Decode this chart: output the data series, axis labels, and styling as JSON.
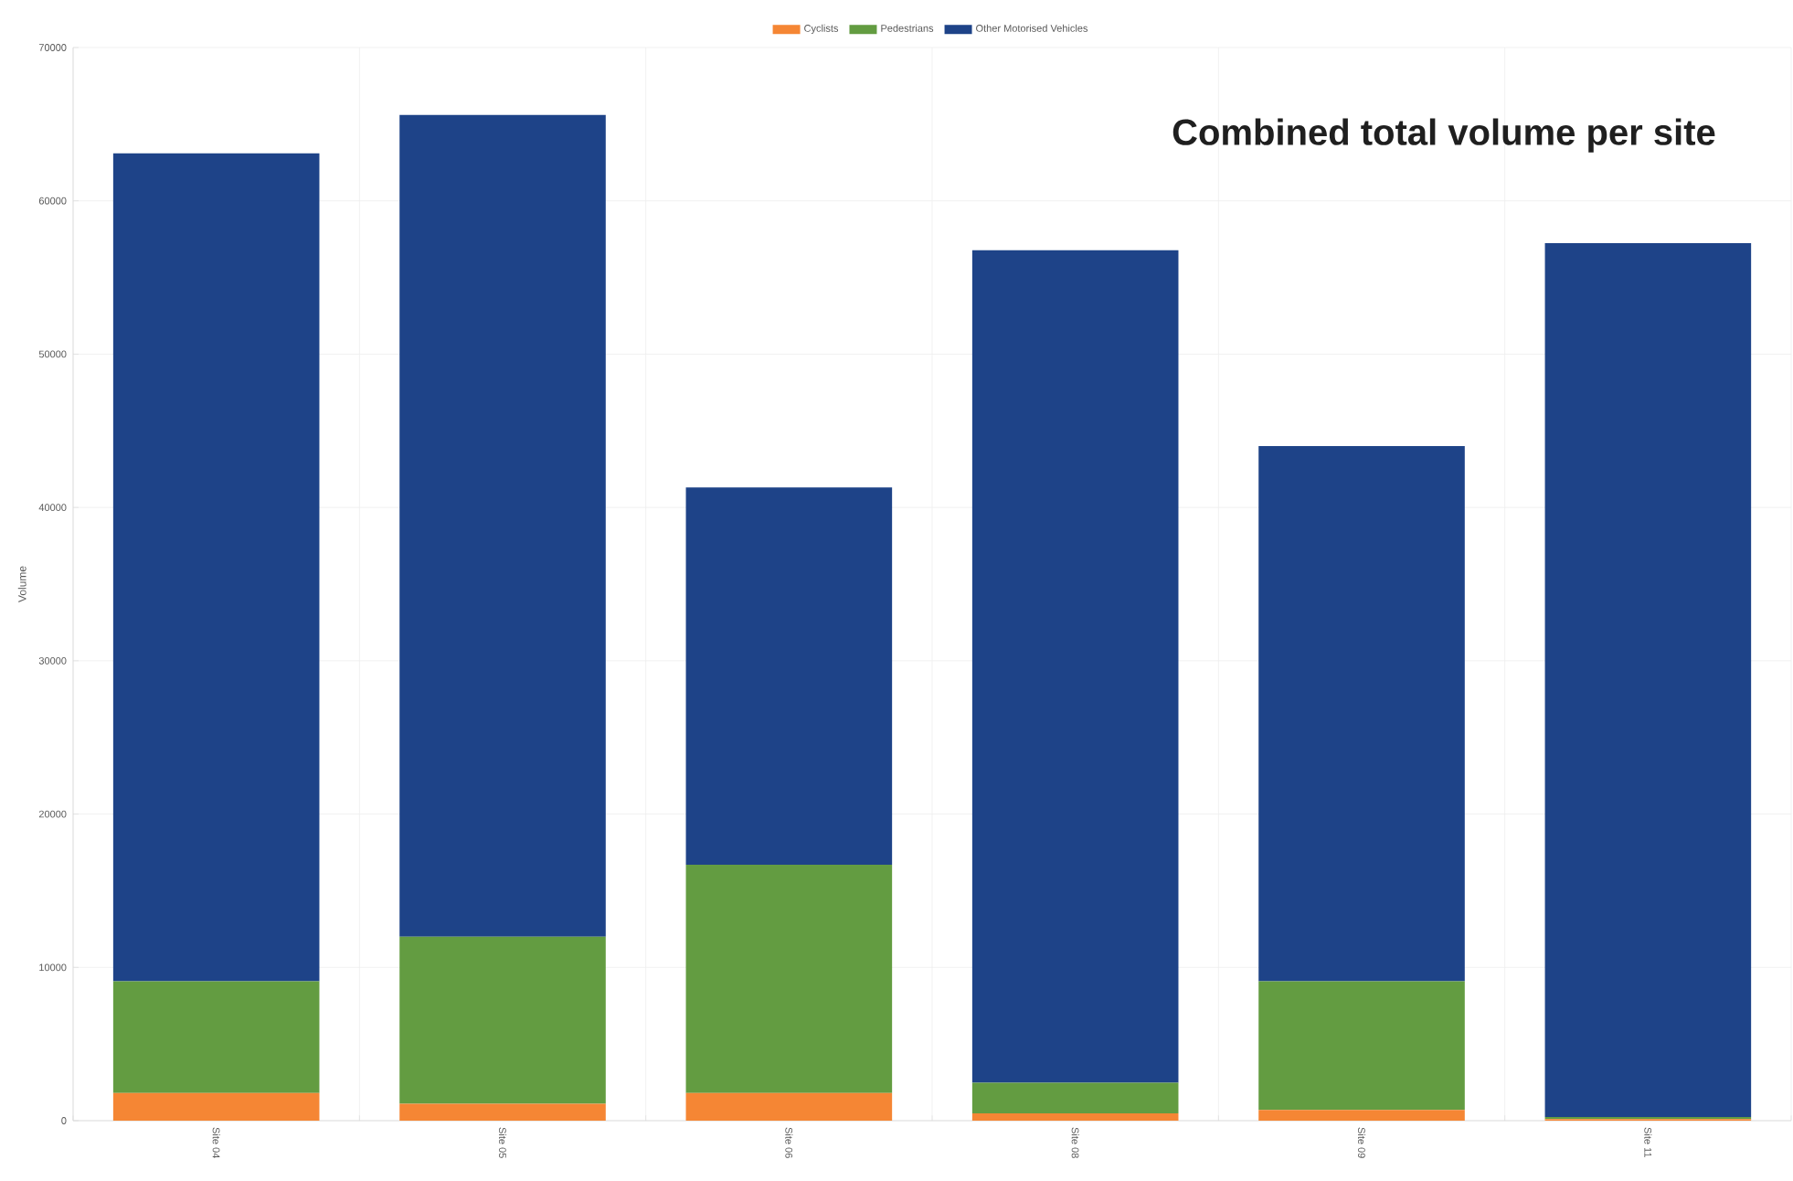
{
  "chart_data": {
    "type": "bar",
    "title": "Combined total volume per site",
    "ylabel": "Volume",
    "categories": [
      "Site 04",
      "Site 05",
      "Site 06",
      "Site 08",
      "Site 09",
      "Site 11"
    ],
    "stacked": true,
    "series": [
      {
        "name": "Cyclists",
        "color": "#f58634",
        "values": [
          1800,
          1100,
          1800,
          480,
          700,
          100
        ]
      },
      {
        "name": "Pedestrians",
        "color": "#639c41",
        "values": [
          7300,
          10900,
          14900,
          2000,
          8400,
          140
        ]
      },
      {
        "name": "Other Motorised Vehicles",
        "color": "#1e4388",
        "values": [
          54000,
          53600,
          24600,
          54300,
          34900,
          57000
        ]
      }
    ],
    "ylim": [
      0,
      70000
    ],
    "yticks": [
      0,
      10000,
      20000,
      30000,
      40000,
      50000,
      60000,
      70000
    ],
    "grid": true,
    "legend": "top"
  }
}
